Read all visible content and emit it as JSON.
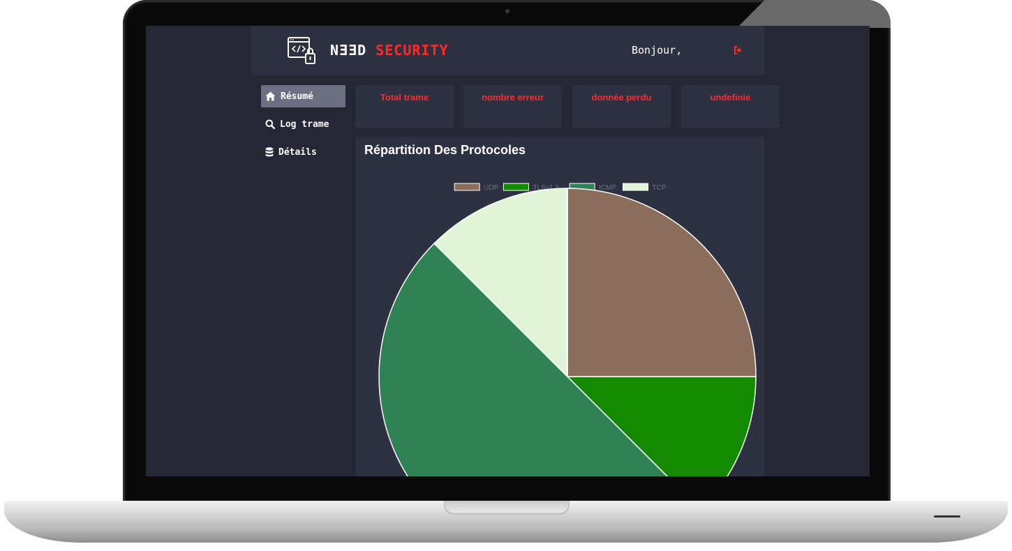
{
  "navbar": {
    "brand_part1": "NƎƎD",
    "brand_part2": "SECURITY",
    "greeting": "Bonjour,"
  },
  "sidebar": {
    "items": [
      {
        "label": "Résumé",
        "icon": "home-icon",
        "active": true
      },
      {
        "label": "Log trame",
        "icon": "search-icon",
        "active": false
      },
      {
        "label": "Détails",
        "icon": "database-icon",
        "active": false
      }
    ]
  },
  "cards": [
    {
      "label": "Total trame"
    },
    {
      "label": "nombre erreur"
    },
    {
      "label": "donnée perdu"
    },
    {
      "label": "undefinie"
    }
  ],
  "panel": {
    "title": "Répartition Des Protocoles"
  },
  "colors": {
    "accent": "#ff2a2a",
    "background": "#252735",
    "panel": "#2e3142",
    "active_nav": "#6c7082"
  },
  "chart_data": {
    "type": "pie",
    "legend_position": "top",
    "title": "",
    "series": [
      {
        "name": "UDP",
        "value": 25,
        "color": "#8b6d5c"
      },
      {
        "name": "TLSv1.2",
        "value": 12.5,
        "color": "#138a00"
      },
      {
        "name": "ICMP",
        "value": 50,
        "color": "#2f8254"
      },
      {
        "name": "TCP",
        "value": 12.5,
        "color": "#e2f4d8"
      }
    ]
  }
}
